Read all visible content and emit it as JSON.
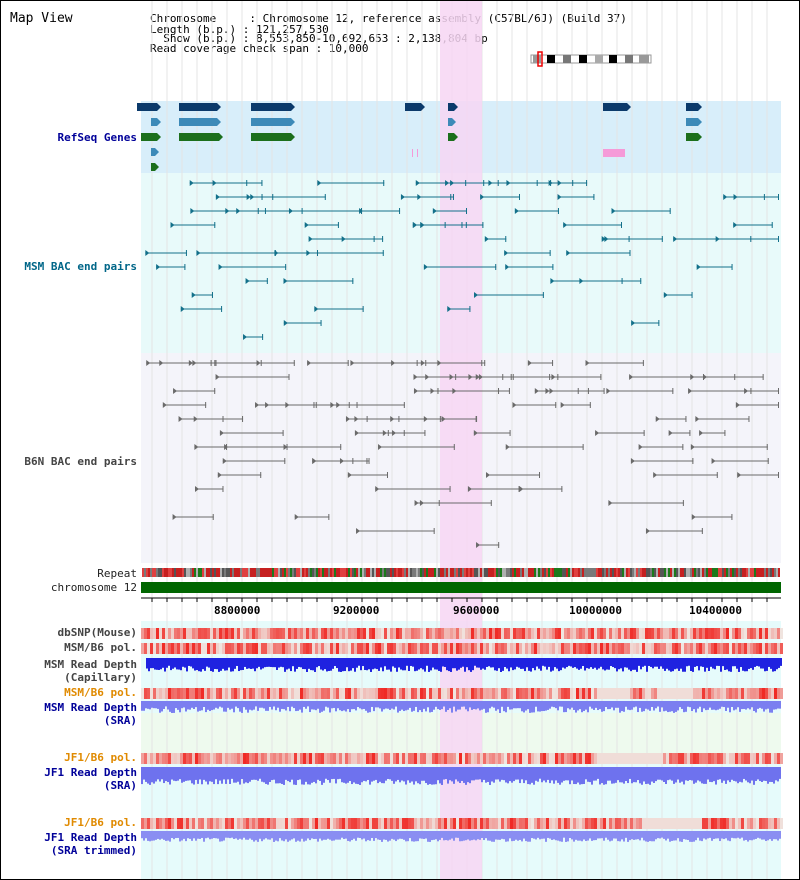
{
  "header": {
    "title": "Map View",
    "chromosome_line": "Chromosome     : Chromosome 12, reference assembly (C57BL/6J) (Build 37)",
    "length_line": "Length (b.p.) : 121,257,530",
    "show_line": "  Show (b.p.) : 8,553,850-10,692,653 : 2,138,804 bp",
    "coverage_line": "Read coverage check span : 10,000"
  },
  "tracks": {
    "refseq": "RefSeq Genes",
    "msm_bac": "MSM BAC end pairs",
    "b6n_bac": "B6N BAC end pairs",
    "repeat": "Repeat",
    "chromosome": "chromosome 12",
    "dbsnp": "dbSNP(Mouse)",
    "msm_b6_pol_1": "MSM/B6 pol.",
    "msm_read_depth_cap_1": "MSM Read Depth",
    "msm_read_depth_cap_2": "(Capillary)",
    "msm_b6_pol_2": "MSM/B6 pol.",
    "msm_read_depth_sra_1": "MSM Read Depth",
    "msm_read_depth_sra_2": "(SRA)",
    "jf1_b6_pol_1": "JF1/B6 pol.",
    "jf1_read_depth_1": "JF1 Read Depth",
    "jf1_read_depth_2": "(SRA)",
    "jf1_b6_pol_2": "JF1/B6 pol.",
    "jf1_trim_1": "JF1 Read Depth",
    "jf1_trim_2": "(SRA trimmed)"
  },
  "axis": {
    "ticks": [
      "8800000",
      "9200000",
      "9600000",
      "10000000",
      "10400000"
    ]
  },
  "colors": {
    "refseq_bg": "#d8eefa",
    "msm_bg": "#e8fafa",
    "b6n_bg": "#f4f4fa",
    "highlight": "#f7d6f3",
    "chromosome_bar": "#006600",
    "depth_blue": "#1f22e0",
    "depth_light_blue": "#7b7ff0"
  }
}
